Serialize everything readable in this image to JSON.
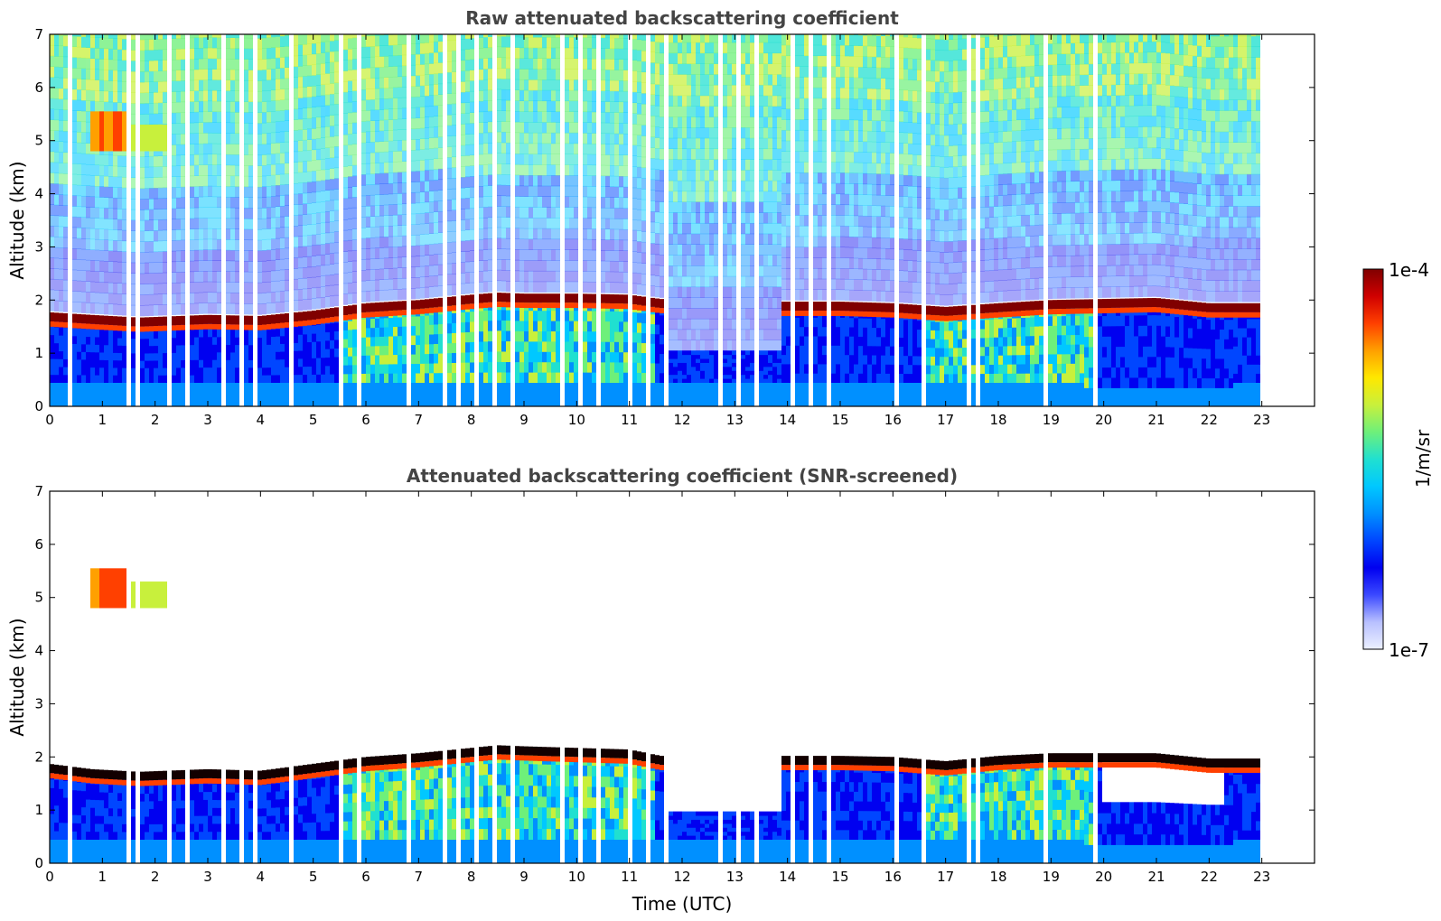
{
  "colors": {
    "ramp": [
      "#ecf0ff",
      "#b8c0ff",
      "#3b49ff",
      "#0000f0",
      "#0046ff",
      "#0090ff",
      "#00c8ff",
      "#20e0d0",
      "#6ef07a",
      "#c8f03c",
      "#ffe800",
      "#ffa000",
      "#ff4000",
      "#d00000",
      "#800000"
    ],
    "cap_black": "#120000",
    "gap": "#ffffff",
    "title_gray": "#444444"
  },
  "chart_data": [
    {
      "id": "top",
      "type": "heatmap",
      "title": "Raw attenuated backscattering coefficient",
      "xlabel": "",
      "ylabel": "Altitude (km)",
      "xlim": [
        0,
        24
      ],
      "ylim": [
        0,
        7
      ],
      "xticks": [
        0,
        1,
        2,
        3,
        4,
        5,
        6,
        7,
        8,
        9,
        10,
        11,
        12,
        13,
        14,
        15,
        16,
        17,
        18,
        19,
        20,
        21,
        22,
        23
      ],
      "yticks": [
        0,
        1,
        2,
        3,
        4,
        5,
        6,
        7
      ],
      "data_end_hour": 22.95,
      "boundary_layer_top_km": [
        [
          0,
          1.65
        ],
        [
          0.8,
          1.6
        ],
        [
          1.7,
          1.55
        ],
        [
          3,
          1.6
        ],
        [
          4,
          1.58
        ],
        [
          5,
          1.68
        ],
        [
          6,
          1.82
        ],
        [
          7,
          1.88
        ],
        [
          8,
          1.98
        ],
        [
          8.5,
          2.02
        ],
        [
          9,
          2.0
        ],
        [
          10,
          2.0
        ],
        [
          11,
          1.98
        ],
        [
          11.6,
          1.9
        ],
        [
          13.9,
          1.85
        ],
        [
          15,
          1.85
        ],
        [
          16,
          1.82
        ],
        [
          17,
          1.75
        ],
        [
          18,
          1.82
        ],
        [
          19,
          1.88
        ],
        [
          20,
          1.9
        ],
        [
          21,
          1.92
        ],
        [
          22,
          1.82
        ]
      ],
      "cloud_layer": {
        "time_range": [
          0.8,
          2.3
        ],
        "altitude_km": [
          4.8,
          5.55
        ]
      }
    },
    {
      "id": "bottom",
      "type": "heatmap",
      "title": "Attenuated backscattering coefficient (SNR-screened)",
      "xlabel": "Time (UTC)",
      "ylabel": "Altitude (km)",
      "xlim": [
        0,
        24
      ],
      "ylim": [
        0,
        7
      ],
      "xticks": [
        0,
        1,
        2,
        3,
        4,
        5,
        6,
        7,
        8,
        9,
        10,
        11,
        12,
        13,
        14,
        15,
        16,
        17,
        18,
        19,
        20,
        21,
        22,
        23
      ],
      "yticks": [
        0,
        1,
        2,
        3,
        4,
        5,
        6,
        7
      ],
      "data_end_hour": 22.95,
      "boundary_layer_top_km": [
        [
          0,
          1.75
        ],
        [
          0.8,
          1.65
        ],
        [
          1.7,
          1.6
        ],
        [
          3,
          1.65
        ],
        [
          4,
          1.62
        ],
        [
          5,
          1.75
        ],
        [
          6,
          1.88
        ],
        [
          7,
          1.95
        ],
        [
          8,
          2.05
        ],
        [
          8.5,
          2.1
        ],
        [
          9,
          2.08
        ],
        [
          10,
          2.05
        ],
        [
          11,
          2.02
        ],
        [
          11.6,
          1.9
        ],
        [
          13.9,
          1.9
        ],
        [
          15,
          1.9
        ],
        [
          16,
          1.88
        ],
        [
          17,
          1.8
        ],
        [
          18,
          1.9
        ],
        [
          19,
          1.95
        ],
        [
          20,
          1.95
        ],
        [
          21,
          1.95
        ],
        [
          22,
          1.85
        ]
      ],
      "cloud_layer": {
        "time_range": [
          0.8,
          2.3
        ],
        "altitude_km": [
          4.8,
          5.55
        ]
      }
    }
  ],
  "colorbar": {
    "label": "1/m/sr",
    "max_label": "1e-4",
    "min_label": "1e-7",
    "vmax": 0.0001,
    "vmin": 1e-07,
    "scale": "log"
  }
}
